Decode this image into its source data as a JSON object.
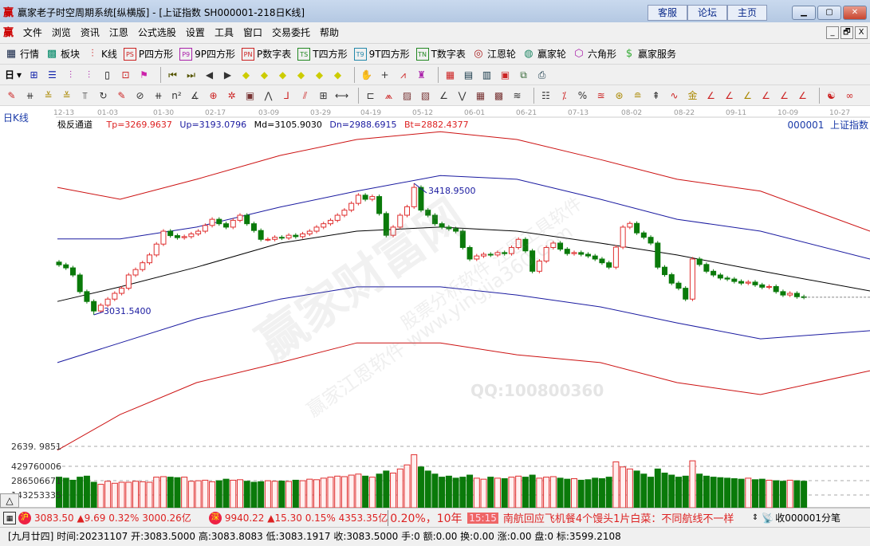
{
  "title_bar": {
    "logo": "赢",
    "title": "赢家老子时空周期系统[纵横版] - [上证指数  SH000001-218日K线]",
    "links": [
      "客服",
      "论坛",
      "主页"
    ],
    "window_controls": [
      "minimize",
      "restore",
      "close"
    ]
  },
  "menu": {
    "logo": "赢",
    "items": [
      "文件",
      "浏览",
      "资讯",
      "江恩",
      "公式选股",
      "设置",
      "工具",
      "窗口",
      "交易委托",
      "帮助"
    ],
    "mdi_controls": [
      "_",
      "🗗",
      "X"
    ]
  },
  "toolbar_main": [
    {
      "icon": "grid-icon",
      "label": "行情"
    },
    {
      "icon": "blocks-icon",
      "label": "板块"
    },
    {
      "icon": "candlestick-icon",
      "label": "K线"
    },
    {
      "icon": "PS",
      "label": "P四方形"
    },
    {
      "icon": "P9",
      "label": "9P四方形"
    },
    {
      "icon": "PN",
      "label": "P数字表"
    },
    {
      "icon": "TS",
      "label": "T四方形"
    },
    {
      "icon": "T9",
      "label": "9T四方形"
    },
    {
      "icon": "TN",
      "label": "T数字表"
    },
    {
      "icon": "target-icon",
      "label": "江恩轮"
    },
    {
      "icon": "big-wheel-icon",
      "label": "赢家轮"
    },
    {
      "icon": "hexagon-icon",
      "label": "六角形"
    },
    {
      "icon": "dollar-icon",
      "label": "赢家服务"
    }
  ],
  "toolbar_period": {
    "period": "日"
  },
  "chart": {
    "period_label": "日K线",
    "indicator": {
      "name": "极反通道",
      "tp": "Tp=3269.9637",
      "up": "Up=3193.0796",
      "md": "Md=3105.9030",
      "dn": "Dn=2988.6915",
      "bt": "Bt=2882.4377"
    },
    "symbol": "000001  上证指数",
    "high_label": "3418.9500",
    "low_label": "3031.5400",
    "price_axis_label": "2639. 9851",
    "volume_axis": [
      "429760006",
      "286506671",
      "143253335"
    ],
    "watermark": [
      "赢家财富网",
      "股票分析软件 江恩工具软件",
      "赢家江恩软件 www.yingjia360.com",
      "QQ:100800360"
    ],
    "colors": {
      "up": "#e03030",
      "down": "#0a7a0a",
      "channel_outer": "#cc1111",
      "channel_inner": "#1a1aa0",
      "mid": "#000000"
    }
  },
  "chart_data": {
    "type": "candlestick",
    "dates": [
      "12-13",
      "01-03",
      "01-30",
      "02-17",
      "03-09",
      "03-29",
      "04-19",
      "05-12",
      "06-01",
      "06-21",
      "07-13",
      "08-02",
      "08-22",
      "09-11",
      "10-09",
      "10-27"
    ],
    "closes": [
      3179,
      3170,
      3149,
      3100,
      3071,
      3043,
      3060,
      3078,
      3095,
      3110,
      3149,
      3165,
      3185,
      3208,
      3240,
      3278,
      3265,
      3259,
      3262,
      3270,
      3278,
      3295,
      3313,
      3300,
      3290,
      3310,
      3325,
      3300,
      3280,
      3254,
      3254,
      3260,
      3258,
      3266,
      3262,
      3270,
      3278,
      3290,
      3300,
      3310,
      3325,
      3340,
      3360,
      3384,
      3372,
      3380,
      3330,
      3266,
      3290,
      3325,
      3350,
      3407,
      3340,
      3325,
      3300,
      3290,
      3285,
      3278,
      3230,
      3196,
      3205,
      3210,
      3208,
      3215,
      3212,
      3230,
      3254,
      3220,
      3160,
      3190,
      3230,
      3243,
      3225,
      3212,
      3215,
      3210,
      3205,
      3196,
      3185,
      3172,
      3231,
      3290,
      3301,
      3273,
      3260,
      3243,
      3172,
      3150,
      3125,
      3110,
      3078,
      3196,
      3180,
      3160,
      3149,
      3140,
      3137,
      3130,
      3125,
      3128,
      3120,
      3113,
      3115,
      3100,
      3090,
      3095,
      3085,
      3083.5
    ],
    "volumes_millions": [
      300,
      290,
      270,
      300,
      310,
      250,
      230,
      260,
      240,
      250,
      250,
      260,
      255,
      250,
      300,
      305,
      300,
      295,
      300,
      260,
      265,
      270,
      255,
      265,
      280,
      270,
      275,
      260,
      250,
      255,
      265,
      260,
      262,
      258,
      270,
      265,
      280,
      275,
      290,
      300,
      310,
      305,
      320,
      330,
      310,
      300,
      330,
      360,
      340,
      380,
      420,
      520,
      400,
      360,
      330,
      300,
      310,
      290,
      300,
      320,
      290,
      280,
      300,
      290,
      285,
      300,
      310,
      300,
      320,
      290,
      300,
      305,
      290,
      280,
      285,
      270,
      275,
      290,
      285,
      300,
      450,
      400,
      380,
      360,
      330,
      300,
      380,
      340,
      320,
      300,
      310,
      460,
      330,
      310,
      300,
      295,
      290,
      285,
      280,
      290,
      275,
      280,
      270,
      265,
      260,
      270,
      265,
      260
    ],
    "channel": {
      "x_index": [
        0,
        9,
        20,
        32,
        43,
        55,
        66,
        78,
        89,
        101,
        124
      ],
      "top_outer": [
        3407,
        3372,
        3431,
        3501,
        3548,
        3571,
        3548,
        3489,
        3431,
        3396,
        3278
      ],
      "top_inner": [
        3255,
        3255,
        3290,
        3349,
        3396,
        3442,
        3431,
        3372,
        3313,
        3278,
        3196
      ],
      "middle": [
        3071,
        3114,
        3172,
        3243,
        3278,
        3290,
        3278,
        3243,
        3208,
        3161,
        3102
      ],
      "bottom_inner": [
        2891,
        2949,
        3020,
        3078,
        3114,
        3114,
        3090,
        3055,
        3008,
        2961,
        2985
      ],
      "bottom_outer": [
        2633,
        2738,
        2832,
        2891,
        2949,
        2949,
        2914,
        2891,
        2832,
        2797,
        2867
      ]
    },
    "high": 3418.95,
    "low": 3031.54
  },
  "status_bar": {
    "sh": {
      "badge": "沪",
      "value": "3083.50",
      "change": "▲9.69",
      "pct": "0.32%",
      "amount": "3000.26亿"
    },
    "sz": {
      "badge": "深",
      "value": "9940.22",
      "change": "▲15.30",
      "pct": "0.15%",
      "amount": "4353.35亿"
    },
    "ticker_tail": "0.20%，10年",
    "news_time": "15:15",
    "news": "南航回应飞机餐4个馒头1片白菜：不同航线不一样",
    "right": "收000001分笔"
  },
  "info_bar": "[九月廿四] 时间:20231107 开:3083.5000 高:3083.8083 低:3083.1917 收:3083.5000 手:0 额:0.00 换:0.00 涨:0.00 盘:0 标:3599.2108"
}
